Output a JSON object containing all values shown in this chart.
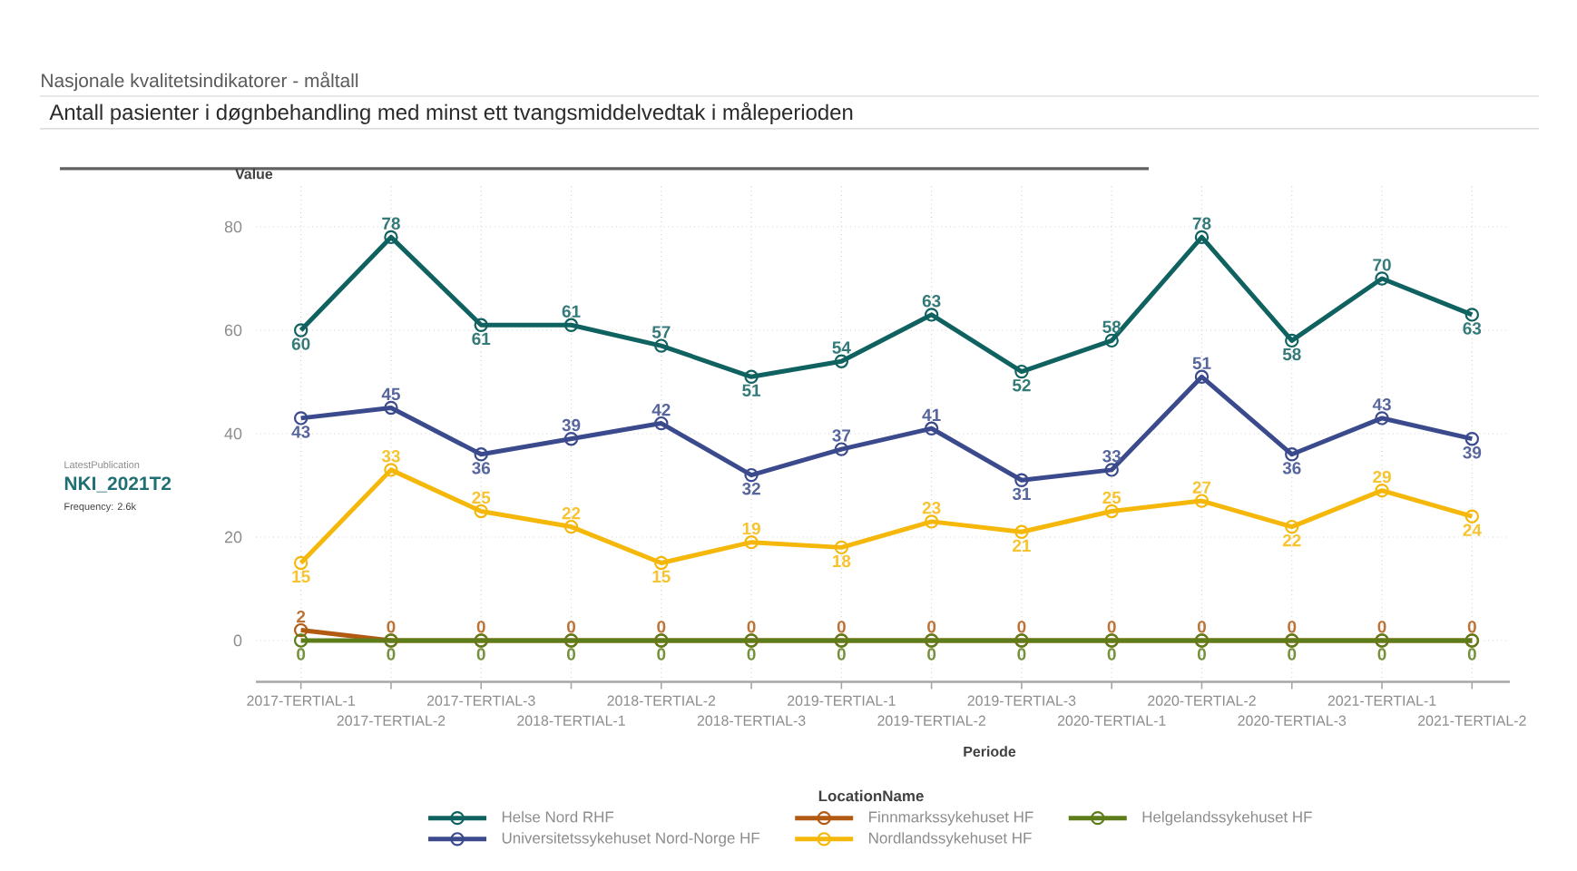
{
  "chart_data": {
    "type": "line",
    "title": "Nasjonale kvalitetsindikatorer - måltall",
    "subtitle": "Antall pasienter i døgnbehandling med minst ett tvangsmiddelvedtak i måleperioden",
    "xlabel": "Periode",
    "ylabel": "Value",
    "legend_title": "LocationName",
    "annotations": [
      "LatestPublication",
      "NKI_2021T2",
      "Frequency: 2.6k"
    ],
    "categories": [
      "2017-TERTIAL-1",
      "2017-TERTIAL-2",
      "2017-TERTIAL-3",
      "2018-TERTIAL-1",
      "2018-TERTIAL-2",
      "2018-TERTIAL-3",
      "2019-TERTIAL-1",
      "2019-TERTIAL-2",
      "2019-TERTIAL-3",
      "2020-TERTIAL-1",
      "2020-TERTIAL-2",
      "2020-TERTIAL-3",
      "2021-TERTIAL-1",
      "2021-TERTIAL-2"
    ],
    "series": [
      {
        "name": "Helse Nord RHF",
        "color": "#0f6260",
        "values": [
          60,
          78,
          61,
          61,
          57,
          51,
          54,
          63,
          52,
          58,
          78,
          58,
          70,
          63
        ]
      },
      {
        "name": "Universitetssykehuset Nord-Norge HF",
        "color": "#3a4a8c",
        "values": [
          43,
          45,
          36,
          39,
          42,
          32,
          37,
          41,
          31,
          33,
          51,
          36,
          43,
          39
        ]
      },
      {
        "name": "Finnmarkssykehuset HF",
        "color": "#b35a12",
        "values": [
          2,
          0,
          0,
          0,
          0,
          0,
          0,
          0,
          0,
          0,
          0,
          0,
          0,
          0
        ]
      },
      {
        "name": "Nordlandssykehuset HF",
        "color": "#f5b80a",
        "values": [
          15,
          33,
          25,
          22,
          15,
          19,
          18,
          23,
          21,
          25,
          27,
          22,
          29,
          24
        ]
      },
      {
        "name": "Helgelandssykehuset HF",
        "color": "#5c7d19",
        "values": [
          0,
          0,
          0,
          0,
          0,
          0,
          0,
          0,
          0,
          0,
          0,
          0,
          0,
          0
        ]
      }
    ],
    "ylim": [
      -8,
      88
    ],
    "yticks": [
      0,
      20,
      40,
      60,
      80
    ],
    "grid": true,
    "legend": "bottom",
    "marker": "circle",
    "line_style": "solid",
    "data_labels": true
  }
}
